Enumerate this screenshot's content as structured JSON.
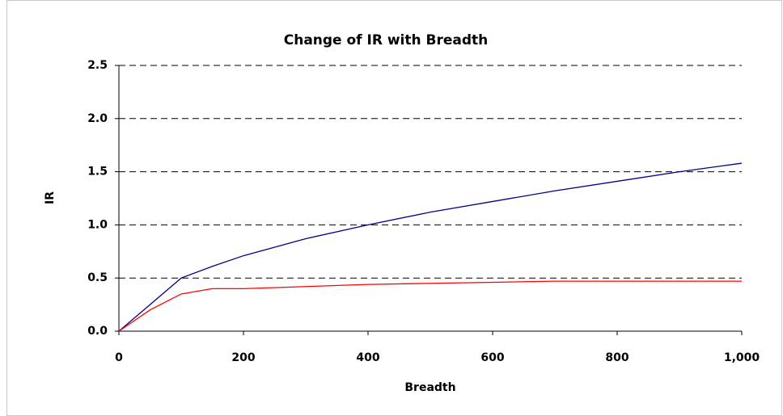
{
  "chart_data": {
    "type": "line",
    "title": "Change of IR with Breadth",
    "x_label": "Breadth",
    "y_label": "IR",
    "x": [
      0,
      50,
      100,
      150,
      200,
      300,
      400,
      500,
      600,
      700,
      800,
      900,
      1000
    ],
    "series": [
      {
        "color": "#00008b",
        "values": [
          0,
          0.25,
          0.5,
          0.61,
          0.71,
          0.87,
          1.0,
          1.12,
          1.22,
          1.32,
          1.41,
          1.5,
          1.58
        ]
      },
      {
        "color": "#ff0000",
        "values": [
          0,
          0.2,
          0.35,
          0.4,
          0.4,
          0.42,
          0.44,
          0.45,
          0.46,
          0.47,
          0.47,
          0.47,
          0.47
        ]
      }
    ],
    "xlim": [
      0,
      1000
    ],
    "ylim": [
      0,
      2.5
    ],
    "xticks": [
      0,
      200,
      400,
      600,
      800,
      {
        "value": 1000,
        "label": "1,000"
      }
    ],
    "yticks": [
      {
        "value": 0,
        "label": "0.0"
      },
      {
        "value": 0.5,
        "label": "0.5"
      },
      {
        "value": 1,
        "label": "1.0"
      },
      {
        "value": 1.5,
        "label": "1.5"
      },
      {
        "value": 2,
        "label": "2.0"
      },
      {
        "value": 2.5,
        "label": "2.5"
      }
    ],
    "grid": true
  }
}
